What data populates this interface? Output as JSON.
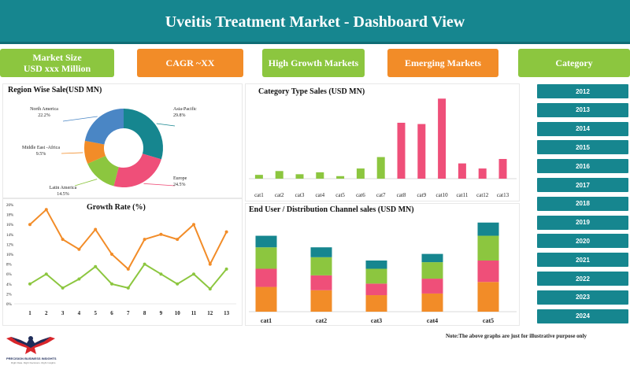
{
  "header": {
    "title": "Uveitis Treatment Market - Dashboard View"
  },
  "kpis": {
    "market_size_line1": "Market Size",
    "market_size_line2": "USD xxx Million",
    "cagr": "CAGR ~XX",
    "high_growth": "High Growth Markets",
    "emerging": "Emerging Markets",
    "category": "Category"
  },
  "years": [
    "2012",
    "2013",
    "2014",
    "2015",
    "2016",
    "2017",
    "2018",
    "2019",
    "2020",
    "2021",
    "2022",
    "2023",
    "2024"
  ],
  "note": "Note:The above graphs are just for illustrative purpose only",
  "logo": {
    "name": "PRECISION BUSINESS INSIGHTS",
    "tagline": "Right Data. Right Decisions. Right Insights"
  },
  "colors": {
    "teal": "#16868f",
    "green": "#8cc63f",
    "orange": "#f28c28",
    "pink": "#ef4f79",
    "blue": "#4a86c5"
  },
  "chart_data": [
    {
      "type": "pie",
      "title": "Region Wise Sale(USD MN)",
      "slices": [
        {
          "label": "Asia-Pacific",
          "value": 29.8,
          "value_label": "29.8%",
          "color": "#16868f"
        },
        {
          "label": "Europe",
          "value": 24.5,
          "value_label": "24.5%",
          "color": "#ef4f79"
        },
        {
          "label": "Latin America",
          "value": 14.5,
          "value_label": "14.5%",
          "color": "#8cc63f"
        },
        {
          "label": "Middle East -Africa",
          "value": 9.5,
          "value_label": "9.5%",
          "color": "#f28c28"
        },
        {
          "label": "North America",
          "value": 22.2,
          "value_label": "22.2%",
          "color": "#4a86c5"
        }
      ]
    },
    {
      "type": "bar",
      "title": "Category Type Sales (USD MN)",
      "categories": [
        "cat1",
        "cat2",
        "cat3",
        "cat4",
        "cat5",
        "cat6",
        "cat7",
        "cat8",
        "cat9",
        "cat10",
        "cat11",
        "cat12",
        "cat13"
      ],
      "values": [
        3,
        6,
        3.5,
        5,
        2,
        8,
        17,
        44,
        43,
        63,
        12,
        8,
        15.5
      ],
      "colors": [
        "#8cc63f",
        "#8cc63f",
        "#8cc63f",
        "#8cc63f",
        "#8cc63f",
        "#8cc63f",
        "#8cc63f",
        "#ef4f79",
        "#ef4f79",
        "#ef4f79",
        "#ef4f79",
        "#ef4f79",
        "#ef4f79"
      ],
      "ylim": [
        0,
        70
      ]
    },
    {
      "type": "line",
      "title": "Growth Rate (%)",
      "x": [
        1,
        2,
        3,
        4,
        5,
        6,
        7,
        8,
        9,
        10,
        11,
        12,
        13
      ],
      "yticks": [
        "0%",
        "2%",
        "4%",
        "6%",
        "8%",
        "10%",
        "12%",
        "14%",
        "16%",
        "18%",
        "20%"
      ],
      "ylim": [
        0,
        20
      ],
      "series": [
        {
          "color": "#f28c28",
          "values": [
            16,
            19,
            13,
            11,
            15,
            10,
            7,
            13,
            14,
            13,
            16,
            8,
            14.5
          ]
        },
        {
          "color": "#8cc63f",
          "values": [
            4,
            6,
            3.2,
            5,
            7.5,
            4,
            3.2,
            8,
            6,
            4,
            6,
            3,
            7
          ]
        }
      ]
    },
    {
      "type": "bar",
      "stacked": true,
      "title": "End User / Distribution Channel sales (USD MN)",
      "categories": [
        "cat1",
        "cat2",
        "cat3",
        "cat4",
        "cat5"
      ],
      "ylim": [
        0,
        62
      ],
      "series": [
        {
          "color": "#f28c28",
          "values": [
            15,
            13,
            10,
            11,
            18
          ]
        },
        {
          "color": "#ef4f79",
          "values": [
            11,
            9,
            7,
            9,
            13
          ]
        },
        {
          "color": "#8cc63f",
          "values": [
            13,
            11,
            9,
            10,
            15
          ]
        },
        {
          "color": "#16868f",
          "values": [
            7,
            6,
            5,
            5,
            8
          ]
        }
      ]
    }
  ]
}
